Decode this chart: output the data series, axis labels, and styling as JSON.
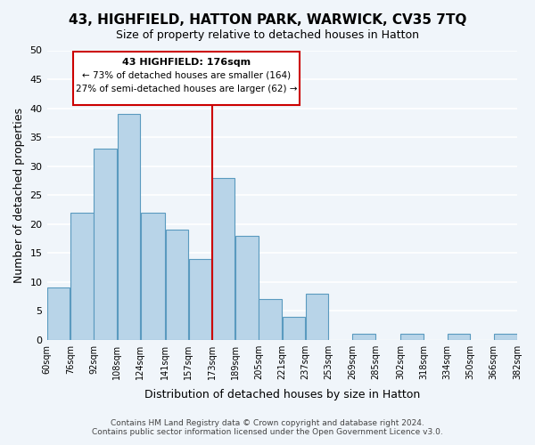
{
  "title": "43, HIGHFIELD, HATTON PARK, WARWICK, CV35 7TQ",
  "subtitle": "Size of property relative to detached houses in Hatton",
  "xlabel": "Distribution of detached houses by size in Hatton",
  "ylabel": "Number of detached properties",
  "bar_color": "#b8d4e8",
  "bar_edge_color": "#5a9abf",
  "highlight_line_color": "#cc0000",
  "annotation_title": "43 HIGHFIELD: 176sqm",
  "annotation_line1": "← 73% of detached houses are smaller (164)",
  "annotation_line2": "27% of semi-detached houses are larger (62) →",
  "annotation_box_color": "#ffffff",
  "annotation_box_edge": "#cc0000",
  "bins": [
    60,
    76,
    92,
    108,
    124,
    141,
    157,
    173,
    189,
    205,
    221,
    237,
    253,
    269,
    285,
    302,
    318,
    334,
    350,
    366,
    382
  ],
  "counts": [
    9,
    22,
    33,
    39,
    22,
    19,
    14,
    28,
    18,
    7,
    4,
    8,
    0,
    1,
    0,
    1,
    0,
    1,
    0,
    1
  ],
  "ylim": [
    0,
    50
  ],
  "yticks": [
    0,
    5,
    10,
    15,
    20,
    25,
    30,
    35,
    40,
    45,
    50
  ],
  "footer_line1": "Contains HM Land Registry data © Crown copyright and database right 2024.",
  "footer_line2": "Contains public sector information licensed under the Open Government Licence v3.0.",
  "background_color": "#f0f5fa",
  "grid_color": "#ffffff"
}
